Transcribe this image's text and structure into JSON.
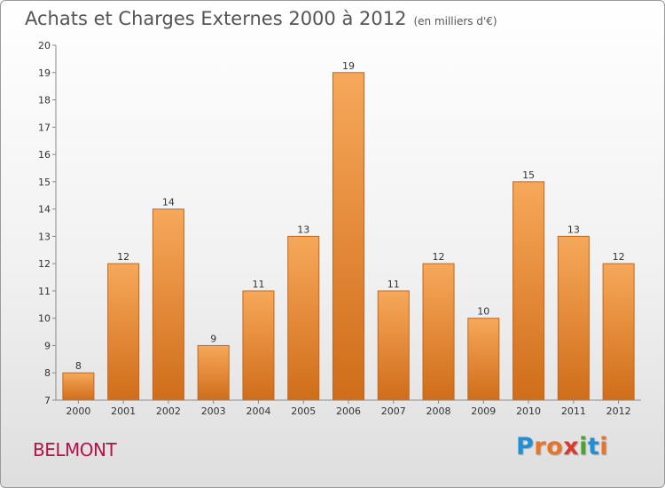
{
  "header": {
    "title": "Achats et Charges Externes 2000 à 2012",
    "subtitle": "(en milliers d'€)"
  },
  "footer": {
    "town": "BELMONT",
    "brand": "Proxiti",
    "brand_colors": [
      "#1f8fd6",
      "#e8742a",
      "#e8742a",
      "#d93a2b",
      "#4aa52e",
      "#1f8fd6",
      "#e8742a"
    ]
  },
  "chart_data": {
    "type": "bar",
    "categories": [
      "2000",
      "2001",
      "2002",
      "2003",
      "2004",
      "2005",
      "2006",
      "2007",
      "2008",
      "2009",
      "2010",
      "2011",
      "2012"
    ],
    "values": [
      8,
      12,
      14,
      9,
      11,
      13,
      19,
      11,
      12,
      10,
      15,
      13,
      12
    ],
    "ylim": [
      7,
      20
    ],
    "yticks": [
      7,
      8,
      9,
      10,
      11,
      12,
      13,
      14,
      15,
      16,
      17,
      18,
      19,
      20
    ],
    "grid": false,
    "bar_color_top": "#f7a85a",
    "bar_color_bottom": "#cf6d1a",
    "bar_edge": "#c4671b"
  }
}
